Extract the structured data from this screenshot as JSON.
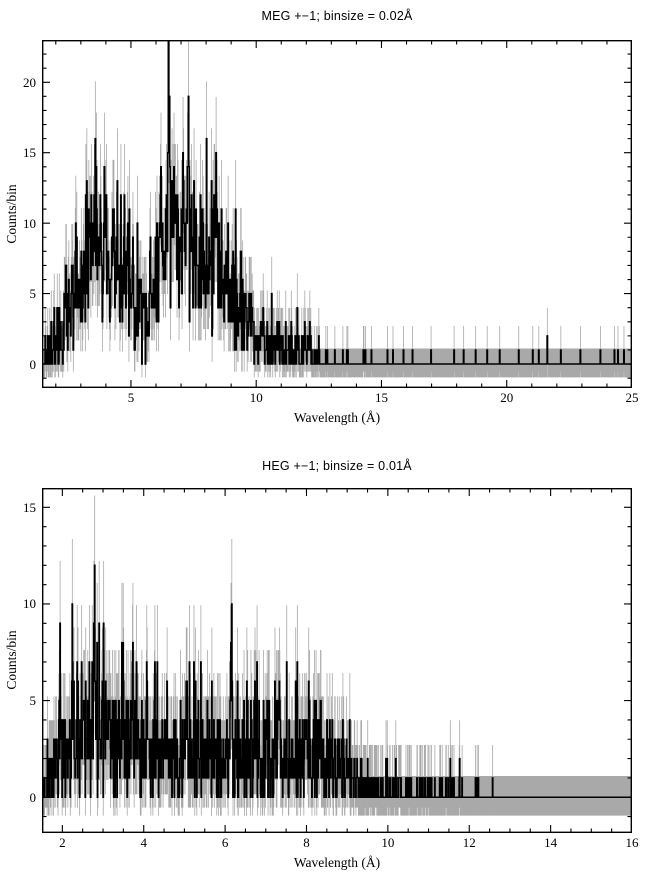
{
  "page": {
    "background": "#ffffff"
  },
  "chart_data": [
    {
      "type": "bar",
      "subtype": "histogram-with-errorbars",
      "title": "MEG +−1; binsize = 0.02Å",
      "xlabel": "Wavelength (Å)",
      "ylabel": "Counts/bin",
      "xlim": [
        1.45,
        25
      ],
      "ylim": [
        -1.7,
        23
      ],
      "bin_size": 0.02,
      "x_major_ticks": [
        5,
        10,
        15,
        20,
        25
      ],
      "x_minor_step": 1,
      "y_major_ticks": [
        0,
        5,
        10,
        15,
        20
      ],
      "y_minor_step": 1,
      "grid": false,
      "legend": "none",
      "colors": {
        "data": "#000000",
        "errorbar": "#a9a9a9",
        "frame": "#000000"
      },
      "continuum_counts_vs_wavelength": [
        [
          1.45,
          0.15
        ],
        [
          1.7,
          0.5
        ],
        [
          1.9,
          1.0
        ],
        [
          2.1,
          1.8
        ],
        [
          2.35,
          3.0
        ],
        [
          2.6,
          4.5
        ],
        [
          2.85,
          5.5
        ],
        [
          3.1,
          6.2
        ],
        [
          3.4,
          6.8
        ],
        [
          3.7,
          7.0
        ],
        [
          4.0,
          7.0
        ],
        [
          4.3,
          6.8
        ],
        [
          4.6,
          6.3
        ],
        [
          4.9,
          5.6
        ],
        [
          5.2,
          4.6
        ],
        [
          5.5,
          3.9
        ],
        [
          5.75,
          3.8
        ],
        [
          5.95,
          4.8
        ],
        [
          6.15,
          6.5
        ],
        [
          6.35,
          8.5
        ],
        [
          6.55,
          9.8
        ],
        [
          6.75,
          9.5
        ],
        [
          7.0,
          9.0
        ],
        [
          7.3,
          9.0
        ],
        [
          7.6,
          7.6
        ],
        [
          7.9,
          6.6
        ],
        [
          8.2,
          7.0
        ],
        [
          8.5,
          6.2
        ],
        [
          8.8,
          5.2
        ],
        [
          9.1,
          4.2
        ],
        [
          9.4,
          3.2
        ],
        [
          9.7,
          2.6
        ],
        [
          10.0,
          2.0
        ],
        [
          10.4,
          1.6
        ],
        [
          10.8,
          1.25
        ],
        [
          11.2,
          1.0
        ],
        [
          11.6,
          0.8
        ],
        [
          12.0,
          0.6
        ],
        [
          12.4,
          0.45
        ],
        [
          12.8,
          0.3
        ],
        [
          13.2,
          0.15
        ],
        [
          13.8,
          0.08
        ],
        [
          15.0,
          0.06
        ],
        [
          18.0,
          0.05
        ],
        [
          21.0,
          0.05
        ],
        [
          25.0,
          0.05
        ]
      ],
      "emission_lines": [
        [
          3.22,
          5.0,
          0.025
        ],
        [
          3.55,
          8.5,
          0.025
        ],
        [
          3.78,
          4.0,
          0.02
        ],
        [
          3.95,
          6.0,
          0.025
        ],
        [
          4.3,
          7.0,
          0.025
        ],
        [
          4.73,
          4.0,
          0.02
        ],
        [
          5.06,
          3.0,
          0.02
        ],
        [
          6.18,
          4.0,
          0.025
        ],
        [
          6.5,
          7.5,
          0.03
        ],
        [
          6.74,
          5.0,
          0.025
        ],
        [
          7.1,
          4.0,
          0.02
        ],
        [
          7.28,
          6.0,
          0.025
        ],
        [
          7.87,
          3.0,
          0.02
        ],
        [
          8.42,
          7.0,
          0.025
        ],
        [
          9.17,
          2.5,
          0.02
        ],
        [
          9.72,
          2.0,
          0.02
        ],
        [
          10.27,
          1.5,
          0.02
        ],
        [
          11.0,
          1.0,
          0.02
        ],
        [
          12.13,
          1.2,
          0.02
        ]
      ],
      "zero_beyond_wavelength": 25,
      "peak_counts": 18,
      "max_errorbar_top": 22.3,
      "noise_seed": 20
    },
    {
      "type": "bar",
      "subtype": "histogram-with-errorbars",
      "title": "HEG +−1; binsize = 0.01Å",
      "xlabel": "Wavelength (Å)",
      "ylabel": "Counts/bin",
      "xlim": [
        1.5,
        16
      ],
      "ylim": [
        -1.85,
        16
      ],
      "bin_size": 0.01,
      "x_major_ticks": [
        2,
        4,
        6,
        8,
        10,
        12,
        14,
        16
      ],
      "x_minor_step": 0.5,
      "y_major_ticks": [
        0,
        5,
        10,
        15
      ],
      "y_minor_step": 1,
      "grid": false,
      "legend": "none",
      "colors": {
        "data": "#000000",
        "errorbar": "#a9a9a9",
        "frame": "#000000"
      },
      "continuum_counts_vs_wavelength": [
        [
          1.5,
          0.4
        ],
        [
          1.7,
          1.0
        ],
        [
          1.9,
          1.7
        ],
        [
          2.1,
          2.3
        ],
        [
          2.4,
          2.8
        ],
        [
          2.7,
          3.1
        ],
        [
          3.0,
          3.2
        ],
        [
          3.3,
          3.0
        ],
        [
          3.6,
          2.8
        ],
        [
          4.0,
          2.8
        ],
        [
          4.4,
          2.6
        ],
        [
          4.8,
          2.4
        ],
        [
          5.2,
          2.3
        ],
        [
          5.6,
          2.2
        ],
        [
          6.0,
          2.3
        ],
        [
          6.4,
          2.3
        ],
        [
          6.8,
          2.2
        ],
        [
          7.2,
          2.1
        ],
        [
          7.6,
          2.1
        ],
        [
          8.0,
          2.0
        ],
        [
          8.4,
          2.0
        ],
        [
          8.75,
          1.8
        ],
        [
          9.0,
          1.4
        ],
        [
          9.3,
          0.85
        ],
        [
          9.6,
          0.6
        ],
        [
          10.0,
          0.45
        ],
        [
          10.5,
          0.35
        ],
        [
          11.0,
          0.3
        ],
        [
          11.5,
          0.22
        ],
        [
          12.0,
          0.12
        ],
        [
          12.4,
          0.06
        ],
        [
          12.65,
          0.03
        ],
        [
          12.7,
          0.0
        ],
        [
          16.0,
          0.0
        ]
      ],
      "emission_lines": [
        [
          1.94,
          3.0,
          0.012
        ],
        [
          2.25,
          3.0,
          0.012
        ],
        [
          2.79,
          6.5,
          0.014
        ],
        [
          3.02,
          2.0,
          0.012
        ],
        [
          3.37,
          2.0,
          0.012
        ],
        [
          3.73,
          2.5,
          0.012
        ],
        [
          4.1,
          1.6,
          0.012
        ],
        [
          4.33,
          1.8,
          0.012
        ],
        [
          5.06,
          2.2,
          0.012
        ],
        [
          5.4,
          1.5,
          0.012
        ],
        [
          6.16,
          5.0,
          0.015
        ],
        [
          6.65,
          2.0,
          0.012
        ],
        [
          6.74,
          1.5,
          0.012
        ],
        [
          7.3,
          1.8,
          0.012
        ],
        [
          7.85,
          2.2,
          0.012
        ],
        [
          8.3,
          1.8,
          0.014
        ],
        [
          8.63,
          1.5,
          0.012
        ]
      ],
      "zero_beyond_wavelength": 12.7,
      "peak_counts": 12,
      "max_errorbar_top": 15.3,
      "noise_seed": 77
    }
  ]
}
